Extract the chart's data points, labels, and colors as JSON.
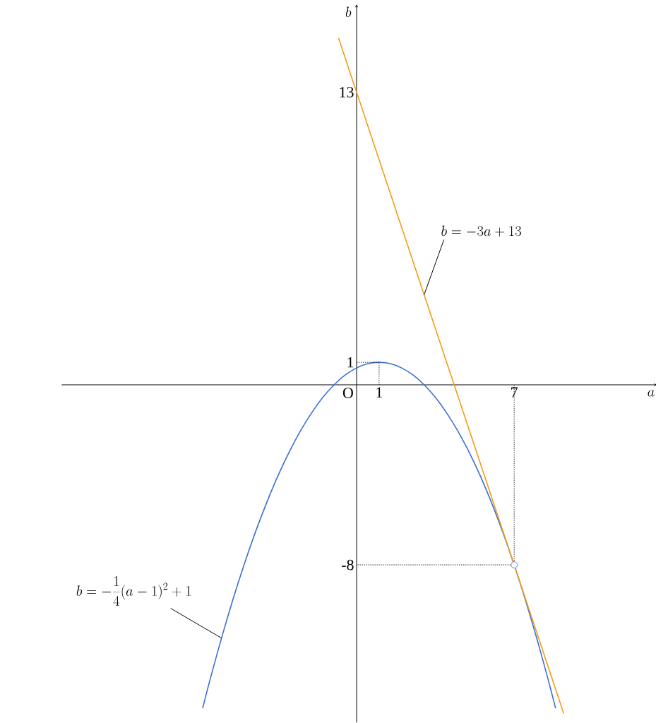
{
  "chart_data": {
    "type": "line",
    "xlabel": "a",
    "ylabel": "b",
    "xlim": [
      -13.1,
      13.35
    ],
    "ylim": [
      -15,
      16.9
    ],
    "xticks": [
      1,
      7
    ],
    "yticks": [
      -8,
      1,
      13
    ],
    "series": [
      {
        "color": "#3a6fd6",
        "line_style": "solid",
        "x": [
          -6.84,
          -6.5,
          -6,
          -5.5,
          -5,
          -4.5,
          -4,
          -3.5,
          -3,
          -2.5,
          -2,
          -1.5,
          -1,
          -0.5,
          0,
          0.5,
          1,
          1.5,
          2,
          2.5,
          3,
          3.5,
          4,
          4.5,
          5,
          5.5,
          6,
          6.5,
          7,
          7.5,
          8,
          8.5,
          8.84
        ],
        "values": [
          -14.37,
          -13.06,
          -11.25,
          -9.56,
          -8,
          -6.56,
          -5.25,
          -4.06,
          -3,
          -2.06,
          -1.25,
          -0.56,
          0,
          0.44,
          0.75,
          0.94,
          1,
          0.94,
          0.75,
          0.44,
          0,
          -0.56,
          -1.25,
          -2.06,
          -3,
          -4.06,
          -5.25,
          -6.56,
          -8,
          -9.56,
          -11.25,
          -13.06,
          -14.37
        ]
      },
      {
        "color": "#f39c12",
        "line_style": "solid",
        "x": [
          -0.8,
          3,
          9.2
        ],
        "values": [
          15.4,
          4,
          -14.6
        ]
      },
      {
        "color": "#000000",
        "line_style": "dotted",
        "x": [
          0,
          1,
          1
        ],
        "values": [
          1,
          1,
          0
        ]
      },
      {
        "color": "#000000",
        "line_style": "dotted",
        "x": [
          7,
          7,
          0
        ],
        "values": [
          0,
          -8,
          -8
        ]
      },
      {
        "type": "scatter",
        "color": "#3a6fd6",
        "marker": "circle",
        "x": [
          7
        ],
        "values": [
          -8
        ]
      }
    ],
    "annotations": [
      "O",
      {
        "text": "b=-3a+13",
        "x": 3,
        "y": 4
      },
      {
        "text": "b=-\\frac{1}{4}(a-1)^{2}+1",
        "x": -6,
        "y": -11.25
      }
    ]
  }
}
